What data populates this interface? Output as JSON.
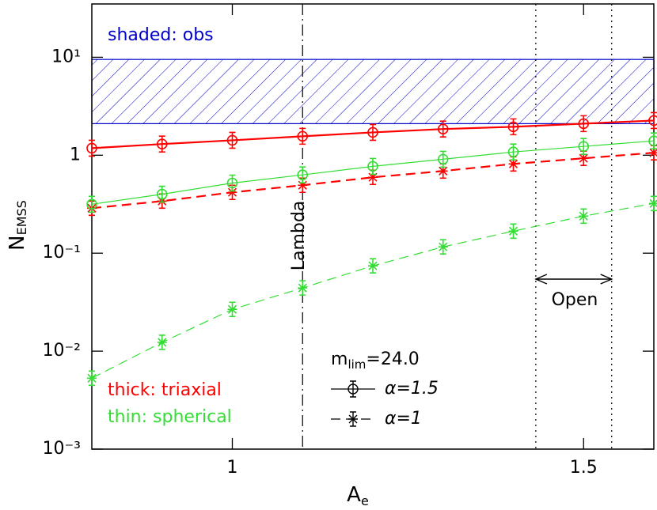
{
  "chart_data": {
    "type": "line",
    "log_y": true,
    "xlabel": {
      "main": "A",
      "sub": "e"
    },
    "ylabel": {
      "main": "N",
      "sub": "EMSS"
    },
    "xlim": [
      0.8,
      1.6
    ],
    "xticks": [
      1,
      1.5
    ],
    "ylim": [
      0.001,
      35
    ],
    "yticks": [
      {
        "value": 10,
        "label": "10¹"
      },
      1,
      {
        "value": 0.1,
        "label": "10⁻¹"
      },
      {
        "value": 0.01,
        "label": "10⁻²"
      },
      {
        "value": 0.001,
        "label": "10⁻³"
      }
    ],
    "x": [
      0.8,
      0.9,
      1.0,
      1.1,
      1.2,
      1.3,
      1.4,
      1.5,
      1.6
    ],
    "series": [
      {
        "color": "#ff0000",
        "dash": "solid",
        "width": 2.2,
        "marker": "circle",
        "values": [
          1.18,
          1.3,
          1.42,
          1.56,
          1.71,
          1.85,
          1.95,
          2.1,
          2.26
        ]
      },
      {
        "color": "#ff0000",
        "dash": "dashed",
        "width": 2.2,
        "marker": "star",
        "values": [
          0.288,
          0.34,
          0.418,
          0.494,
          0.595,
          0.69,
          0.815,
          0.93,
          1.06
        ]
      },
      {
        "color": "#33dd33",
        "dash": "solid",
        "width": 1.2,
        "marker": "circle",
        "values": [
          0.316,
          0.4,
          0.52,
          0.63,
          0.77,
          0.91,
          1.08,
          1.23,
          1.4
        ]
      },
      {
        "color": "#33dd33",
        "dash": "dashed",
        "width": 1.2,
        "marker": "star",
        "values": [
          0.0053,
          0.0123,
          0.0267,
          0.0442,
          0.0743,
          0.116,
          0.168,
          0.239,
          0.322
        ]
      }
    ],
    "band": {
      "range": [
        2.1,
        9.5
      ],
      "color": "#0000cc"
    },
    "vlines": [
      {
        "x": 1.1,
        "dash": "dashdot"
      },
      {
        "x": 1.432,
        "dash": "dotted"
      },
      {
        "x": 1.54,
        "dash": "dotted"
      }
    ],
    "annotations": [
      {
        "text": "shaded: obs",
        "color": "#0000cc"
      },
      {
        "text": "Lambda",
        "color": "#000000"
      },
      {
        "text": "Open",
        "color": "#000000"
      },
      {
        "text": "thick: triaxial",
        "color": "#ff0000"
      },
      {
        "text": "thin: spherical",
        "color": "#33dd33"
      }
    ],
    "legend": {
      "title": {
        "main": "m",
        "sub": "lim",
        "rest": "=24.0"
      },
      "entries": [
        {
          "label": "α=1.5",
          "dash": "solid",
          "marker": "circle"
        },
        {
          "label": "α=1",
          "dash": "dashed",
          "marker": "star"
        }
      ]
    }
  }
}
